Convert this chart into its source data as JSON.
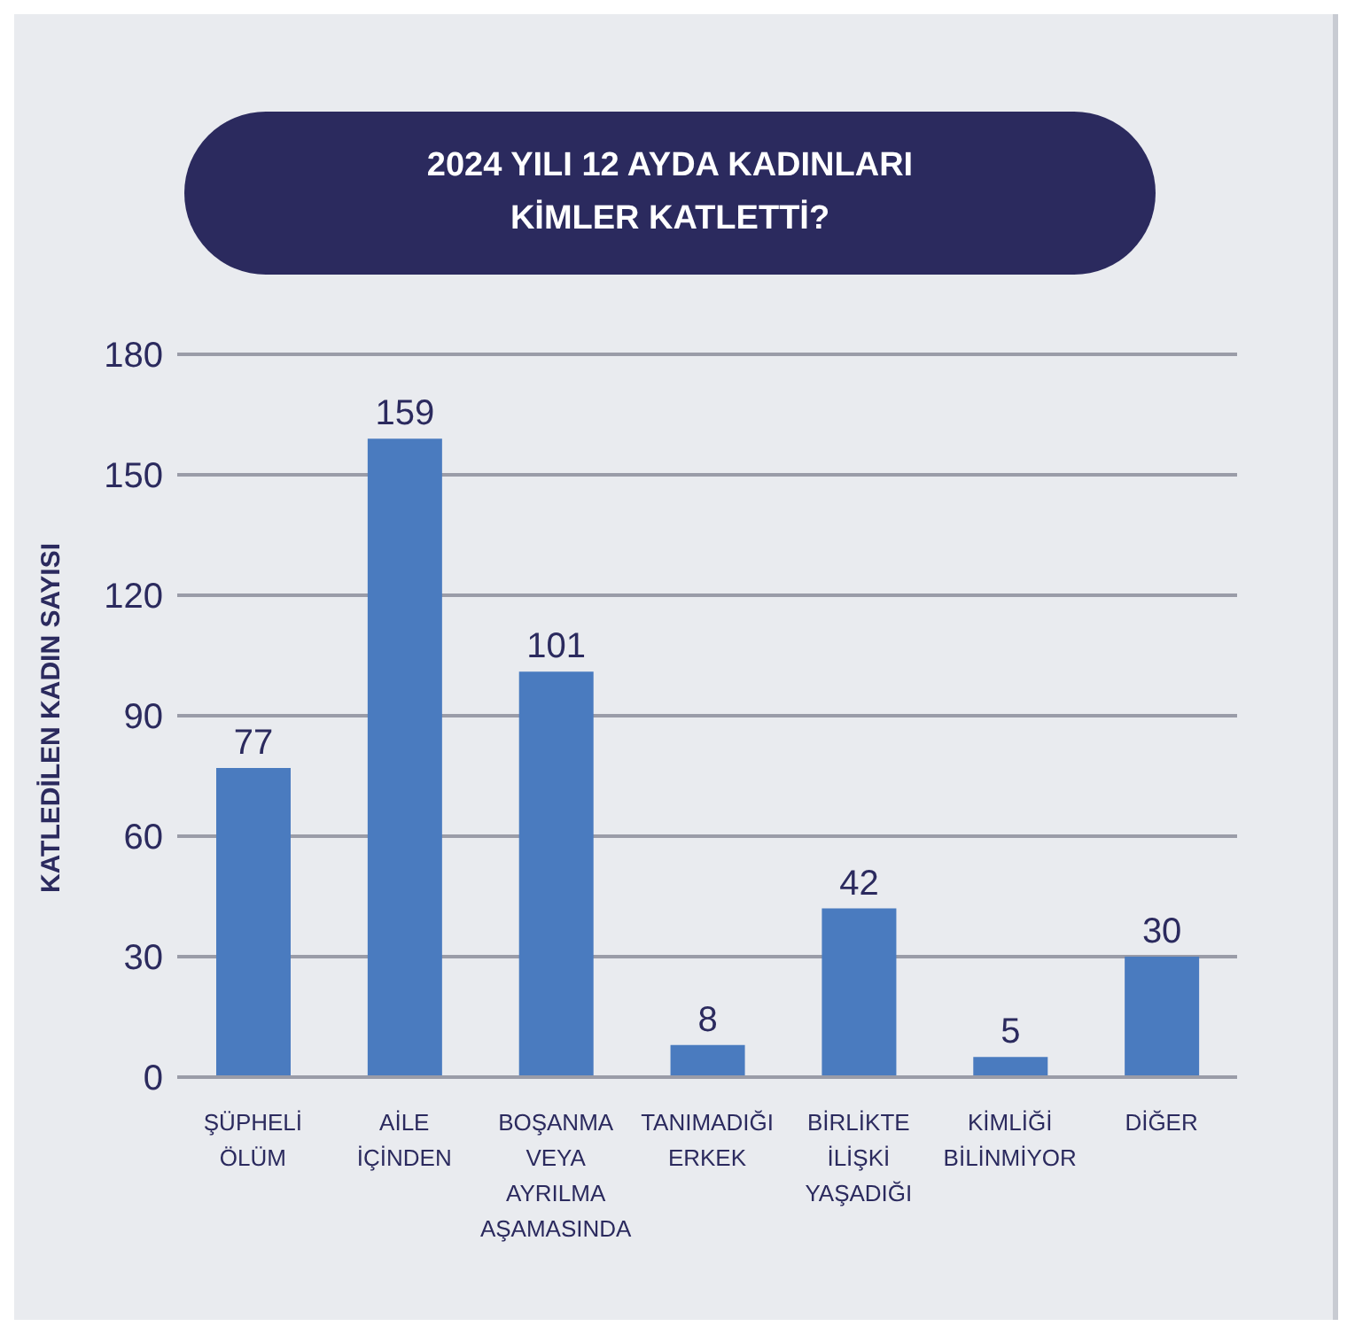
{
  "chart_data": {
    "type": "bar",
    "title": "2024 YILI 12 AYDA KADINLARI\nKİMLER KATLETTİ?",
    "ylabel": "KATLEDİLEN KADIN SAYISI",
    "categories": [
      "ŞÜPHELİ ÖLÜM",
      "AİLE İÇİNDEN",
      "BOŞANMA VEYA AYRILMA AŞAMASINDA",
      "TANIMADIĞI ERKEK",
      "BİRLİKTE İLİŞKİ YAŞADIĞI",
      "KİMLİĞİ BİLİNMİYOR",
      "DİĞER"
    ],
    "values": [
      77,
      159,
      101,
      8,
      42,
      5,
      30
    ],
    "color": "#4a7bbf",
    "ylim": [
      0,
      180
    ],
    "yticks": [
      0,
      30,
      60,
      90,
      120,
      150,
      180
    ],
    "grid": "y",
    "data_labels": true,
    "legend": false
  }
}
